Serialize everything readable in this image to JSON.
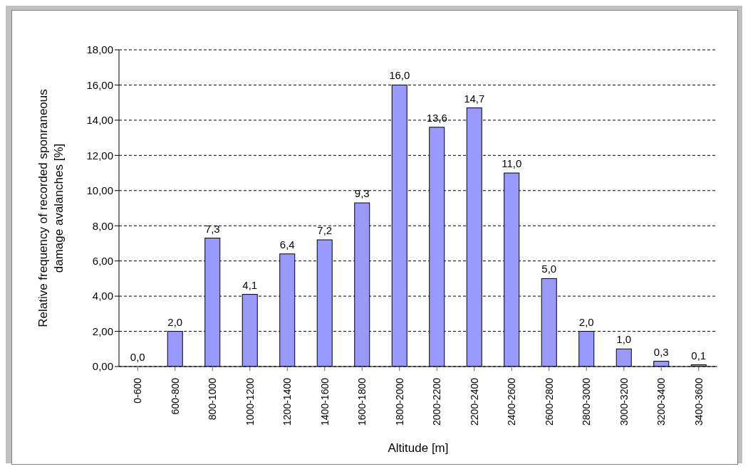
{
  "chart_data": {
    "type": "bar",
    "xlabel": "Altitude [m]",
    "ylabel": "Relative frequency of recorded sponraneous damage avalanches [%]",
    "categories": [
      "0-600",
      "600-800",
      "800-1000",
      "1000-1200",
      "1200-1400",
      "1400-1600",
      "1600-1800",
      "1800-2000",
      "2000-2200",
      "2200-2400",
      "2400-2600",
      "2600-2800",
      "2800-3000",
      "3000-3200",
      "3200-3400",
      "3400-3600"
    ],
    "values": [
      0.0,
      2.0,
      7.3,
      4.1,
      6.4,
      7.2,
      9.3,
      16.0,
      13.6,
      14.7,
      11.0,
      5.0,
      2.0,
      1.0,
      0.3,
      0.1
    ],
    "value_labels": [
      "0,0",
      "2,0",
      "7,3",
      "4,1",
      "6,4",
      "7,2",
      "9,3",
      "16,0",
      "13,6",
      "14,7",
      "11,0",
      "5,0",
      "2,0",
      "1,0",
      "0,3",
      "0,1"
    ],
    "color": "#9999ff",
    "ylim": [
      0,
      18
    ],
    "yticks": [
      {
        "value": 0,
        "label": "0,00"
      },
      {
        "value": 2,
        "label": "2,00"
      },
      {
        "value": 4,
        "label": "4,00"
      },
      {
        "value": 6,
        "label": "6,00"
      },
      {
        "value": 8,
        "label": "8,00"
      },
      {
        "value": 10,
        "label": "10,00"
      },
      {
        "value": 12,
        "label": "12,00"
      },
      {
        "value": 14,
        "label": "14,00"
      },
      {
        "value": 16,
        "label": "16,00"
      },
      {
        "value": 18,
        "label": "18,00"
      }
    ],
    "grid": "y"
  }
}
